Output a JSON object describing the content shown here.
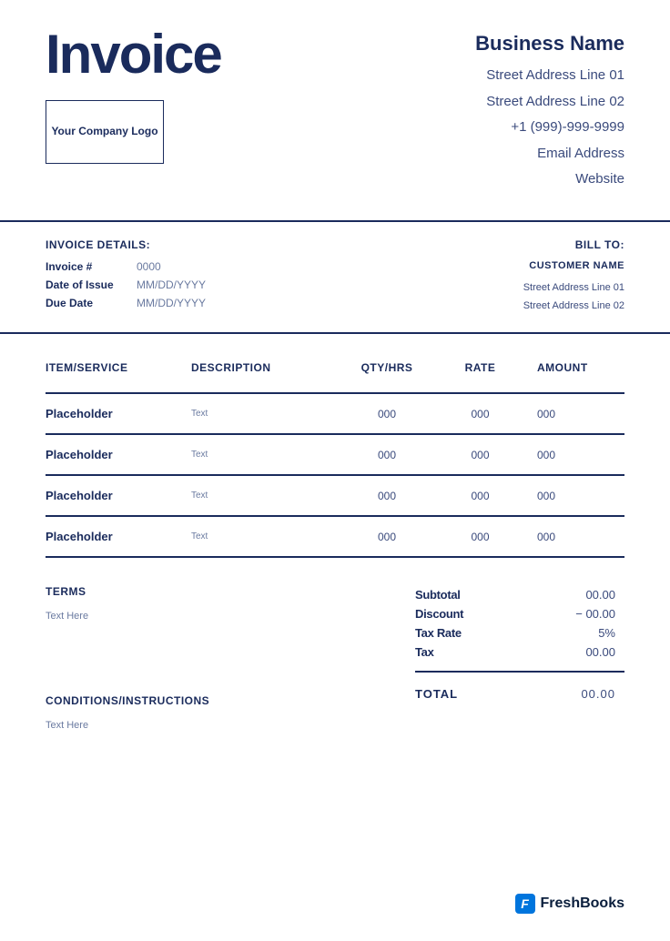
{
  "colors": {
    "primary": "#1a2b5c",
    "text_muted": "#6a7aa0",
    "text_secondary": "#3a4a7c",
    "background": "#ffffff",
    "brand_blue": "#0075dd"
  },
  "header": {
    "title": "Invoice",
    "logo_text": "Your Company Logo",
    "business_name": "Business Name",
    "address_line_1": "Street Address Line 01",
    "address_line_2": "Street Address Line 02",
    "phone": "+1 (999)-999-9999",
    "email": "Email Address",
    "website": "Website"
  },
  "details": {
    "section_label": "INVOICE DETAILS:",
    "invoice_num_label": "Invoice #",
    "invoice_num_value": "0000",
    "date_issue_label": "Date of Issue",
    "date_issue_value": "MM/DD/YYYY",
    "due_date_label": "Due Date",
    "due_date_value": "MM/DD/YYYY"
  },
  "bill_to": {
    "section_label": "BILL TO:",
    "customer_name": "CUSTOMER NAME",
    "address_line_1": "Street Address Line 01",
    "address_line_2": "Street Address Line 02"
  },
  "table": {
    "columns": {
      "item": "ITEM/SERVICE",
      "description": "DESCRIPTION",
      "qty": "QTY/HRS",
      "rate": "RATE",
      "amount": "AMOUNT"
    },
    "rows": [
      {
        "item": "Placeholder",
        "description": "Text",
        "qty": "000",
        "rate": "000",
        "amount": "000"
      },
      {
        "item": "Placeholder",
        "description": "Text",
        "qty": "000",
        "rate": "000",
        "amount": "000"
      },
      {
        "item": "Placeholder",
        "description": "Text",
        "qty": "000",
        "rate": "000",
        "amount": "000"
      },
      {
        "item": "Placeholder",
        "description": "Text",
        "qty": "000",
        "rate": "000",
        "amount": "000"
      }
    ]
  },
  "terms": {
    "label": "TERMS",
    "text": "Text Here"
  },
  "conditions": {
    "label": "CONDITIONS/INSTRUCTIONS",
    "text": "Text Here"
  },
  "totals": {
    "subtotal_label": "Subtotal",
    "subtotal_value": "00.00",
    "discount_label": "Discount",
    "discount_value": "− 00.00",
    "taxrate_label": "Tax Rate",
    "taxrate_value": "5%",
    "tax_label": "Tax",
    "tax_value": "00.00",
    "total_label": "TOTAL",
    "total_value": "00.00"
  },
  "footer": {
    "brand": "FreshBooks",
    "icon_letter": "F"
  }
}
